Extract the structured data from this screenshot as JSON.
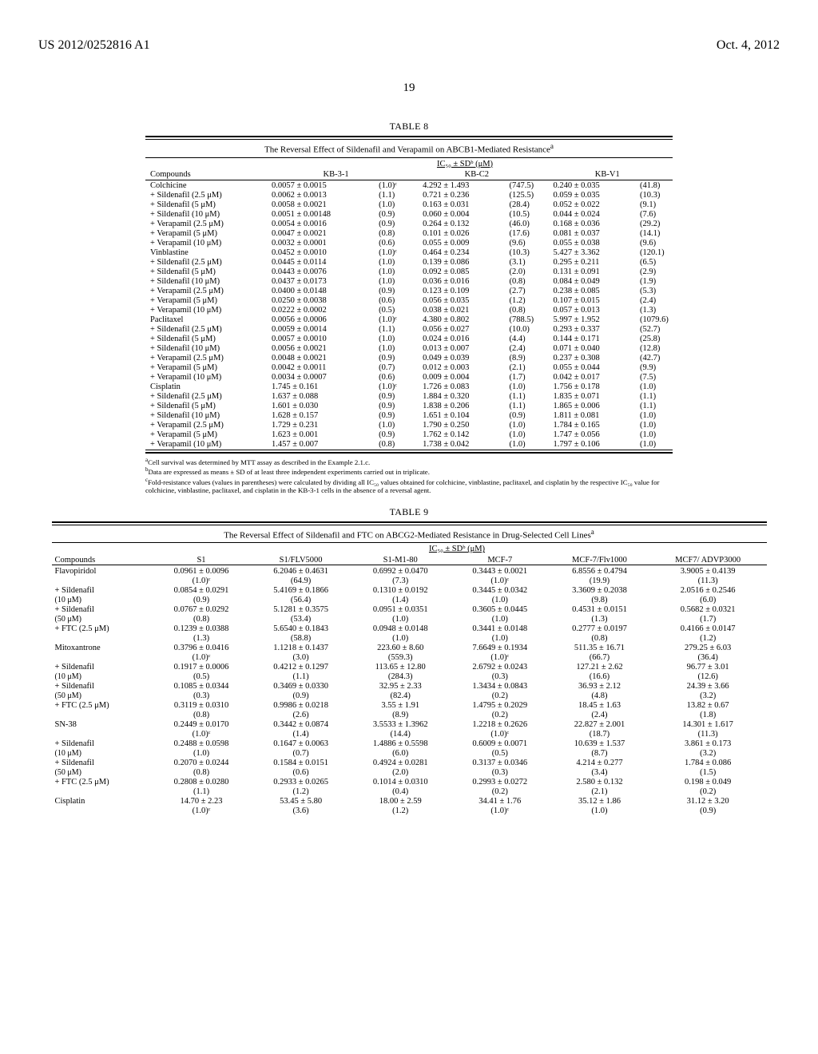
{
  "header": {
    "publication_number": "US 2012/0252816 A1",
    "date": "Oct. 4, 2012",
    "page_number": "19"
  },
  "table8": {
    "number": "TABLE 8",
    "caption": "The Reversal Effect of Sildenafil and Verapamil on ABCB1-Mediated Resistance",
    "caption_sup": "a",
    "ic_header": "IC₅₀ ± SDᵇ (μM)",
    "columns": [
      "Compounds",
      "KB-3-1",
      "KB-C2",
      "KB-V1"
    ],
    "rows": [
      {
        "name": "Colchicine",
        "kb31": "0.0057 ± 0.0015",
        "kb31_f": "(1.0)ᶜ",
        "kbc2": "4.292 ± 1.493",
        "kbc2_f": "(747.5)",
        "kbv1": "0.240 ± 0.035",
        "kbv1_f": "(41.8)"
      },
      {
        "name": "+ Sildenafil (2.5 μM)",
        "kb31": "0.0062 ± 0.0013",
        "kb31_f": "(1.1)",
        "kbc2": "0.721 ± 0.236",
        "kbc2_f": "(125.5)",
        "kbv1": "0.059 ± 0.035",
        "kbv1_f": "(10.3)"
      },
      {
        "name": "+ Sildenafil (5 μM)",
        "kb31": "0.0058 ± 0.0021",
        "kb31_f": "(1.0)",
        "kbc2": "0.163 ± 0.031",
        "kbc2_f": "(28.4)",
        "kbv1": "0.052 ± 0.022",
        "kbv1_f": "(9.1)"
      },
      {
        "name": "+ Sildenafil (10 μM)",
        "kb31": "0.0051 ± 0.00148",
        "kb31_f": "(0.9)",
        "kbc2": "0.060 ± 0.004",
        "kbc2_f": "(10.5)",
        "kbv1": "0.044 ± 0.024",
        "kbv1_f": "(7.6)"
      },
      {
        "name": "+ Verapamil (2.5 μM)",
        "kb31": "0.0054 ± 0.0016",
        "kb31_f": "(0.9)",
        "kbc2": "0.264 ± 0.132",
        "kbc2_f": "(46.0)",
        "kbv1": "0.168 ± 0.036",
        "kbv1_f": "(29.2)"
      },
      {
        "name": "+ Verapamil (5 μM)",
        "kb31": "0.0047 ± 0.0021",
        "kb31_f": "(0.8)",
        "kbc2": "0.101 ± 0.026",
        "kbc2_f": "(17.6)",
        "kbv1": "0.081 ± 0.037",
        "kbv1_f": "(14.1)"
      },
      {
        "name": "+ Verapamil (10 μM)",
        "kb31": "0.0032 ± 0.0001",
        "kb31_f": "(0.6)",
        "kbc2": "0.055 ± 0.009",
        "kbc2_f": "(9.6)",
        "kbv1": "0.055 ± 0.038",
        "kbv1_f": "(9.6)"
      },
      {
        "name": "Vinblastine",
        "kb31": "0.0452 ± 0.0010",
        "kb31_f": "(1.0)ᶜ",
        "kbc2": "0.464 ± 0.234",
        "kbc2_f": "(10.3)",
        "kbv1": "5.427 ± 3.362",
        "kbv1_f": "(120.1)"
      },
      {
        "name": "+ Sildenafil (2.5 μM)",
        "kb31": "0.0445 ± 0.0114",
        "kb31_f": "(1.0)",
        "kbc2": "0.139 ± 0.086",
        "kbc2_f": "(3.1)",
        "kbv1": "0.295 ± 0.211",
        "kbv1_f": "(6.5)"
      },
      {
        "name": "+ Sildenafil (5 μM)",
        "kb31": "0.0443 ± 0.0076",
        "kb31_f": "(1.0)",
        "kbc2": "0.092 ± 0.085",
        "kbc2_f": "(2.0)",
        "kbv1": "0.131 ± 0.091",
        "kbv1_f": "(2.9)"
      },
      {
        "name": "+ Sildenafil (10 μM)",
        "kb31": "0.0437 ± 0.0173",
        "kb31_f": "(1.0)",
        "kbc2": "0.036 ± 0.016",
        "kbc2_f": "(0.8)",
        "kbv1": "0.084 ± 0.049",
        "kbv1_f": "(1.9)"
      },
      {
        "name": "+ Verapamil (2.5 μM)",
        "kb31": "0.0400 ± 0.0148",
        "kb31_f": "(0.9)",
        "kbc2": "0.123 ± 0.109",
        "kbc2_f": "(2.7)",
        "kbv1": "0.238 ± 0.085",
        "kbv1_f": "(5.3)"
      },
      {
        "name": "+ Verapamil (5 μM)",
        "kb31": "0.0250 ± 0.0038",
        "kb31_f": "(0.6)",
        "kbc2": "0.056 ± 0.035",
        "kbc2_f": "(1.2)",
        "kbv1": "0.107 ± 0.015",
        "kbv1_f": "(2.4)"
      },
      {
        "name": "+ Verapamil (10 μM)",
        "kb31": "0.0222 ± 0.0002",
        "kb31_f": "(0.5)",
        "kbc2": "0.038 ± 0.021",
        "kbc2_f": "(0.8)",
        "kbv1": "0.057 ± 0.013",
        "kbv1_f": "(1.3)"
      },
      {
        "name": "Paclitaxel",
        "kb31": "0.0056 ± 0.0006",
        "kb31_f": "(1.0)ᶜ",
        "kbc2": "4.380 ± 0.802",
        "kbc2_f": "(788.5)",
        "kbv1": "5.997 ± 1.952",
        "kbv1_f": "(1079.6)"
      },
      {
        "name": "+ Sildenafil (2.5 μM)",
        "kb31": "0.0059 ± 0.0014",
        "kb31_f": "(1.1)",
        "kbc2": "0.056 ± 0.027",
        "kbc2_f": "(10.0)",
        "kbv1": "0.293 ± 0.337",
        "kbv1_f": "(52.7)"
      },
      {
        "name": "+ Sildenafil (5 μM)",
        "kb31": "0.0057 ± 0.0010",
        "kb31_f": "(1.0)",
        "kbc2": "0.024 ± 0.016",
        "kbc2_f": "(4.4)",
        "kbv1": "0.144 ± 0.171",
        "kbv1_f": "(25.8)"
      },
      {
        "name": "+ Sildenafil (10 μM)",
        "kb31": "0.0056 ± 0.0021",
        "kb31_f": "(1.0)",
        "kbc2": "0.013 ± 0.007",
        "kbc2_f": "(2.4)",
        "kbv1": "0.071 ± 0.040",
        "kbv1_f": "(12.8)"
      },
      {
        "name": "+ Verapamil (2.5 μM)",
        "kb31": "0.0048 ± 0.0021",
        "kb31_f": "(0.9)",
        "kbc2": "0.049 ± 0.039",
        "kbc2_f": "(8.9)",
        "kbv1": "0.237 ± 0.308",
        "kbv1_f": "(42.7)"
      },
      {
        "name": "+ Verapamil (5 μM)",
        "kb31": "0.0042 ± 0.0011",
        "kb31_f": "(0.7)",
        "kbc2": "0.012 ± 0.003",
        "kbc2_f": "(2.1)",
        "kbv1": "0.055 ± 0.044",
        "kbv1_f": "(9.9)"
      },
      {
        "name": "+ Verapamil (10 μM)",
        "kb31": "0.0034 ± 0.0007",
        "kb31_f": "(0.6)",
        "kbc2": "0.009 ± 0.004",
        "kbc2_f": "(1.7)",
        "kbv1": "0.042 ± 0.017",
        "kbv1_f": "(7.5)"
      },
      {
        "name": "Cisplatin",
        "kb31": "1.745 ± 0.161",
        "kb31_f": "(1.0)ᶜ",
        "kbc2": "1.726 ± 0.083",
        "kbc2_f": "(1.0)",
        "kbv1": "1.756 ± 0.178",
        "kbv1_f": "(1.0)"
      },
      {
        "name": "+ Sildenafil (2.5 μM)",
        "kb31": "1.637 ± 0.088",
        "kb31_f": "(0.9)",
        "kbc2": "1.884 ± 0.320",
        "kbc2_f": "(1.1)",
        "kbv1": "1.835 ± 0.071",
        "kbv1_f": "(1.1)"
      },
      {
        "name": "+ Sildenafil (5 μM)",
        "kb31": "1.601 ± 0.030",
        "kb31_f": "(0.9)",
        "kbc2": "1.838 ± 0.206",
        "kbc2_f": "(1.1)",
        "kbv1": "1.865 ± 0.006",
        "kbv1_f": "(1.1)"
      },
      {
        "name": "+ Sildenafil (10 μM)",
        "kb31": "1.628 ± 0.157",
        "kb31_f": "(0.9)",
        "kbc2": "1.651 ± 0.104",
        "kbc2_f": "(0.9)",
        "kbv1": "1.811 ± 0.081",
        "kbv1_f": "(1.0)"
      },
      {
        "name": "+ Verapamil (2.5 μM)",
        "kb31": "1.729 ± 0.231",
        "kb31_f": "(1.0)",
        "kbc2": "1.790 ± 0.250",
        "kbc2_f": "(1.0)",
        "kbv1": "1.784 ± 0.165",
        "kbv1_f": "(1.0)"
      },
      {
        "name": "+ Verapamil (5 μM)",
        "kb31": "1.623 ± 0.001",
        "kb31_f": "(0.9)",
        "kbc2": "1.762 ± 0.142",
        "kbc2_f": "(1.0)",
        "kbv1": "1.747 ± 0.056",
        "kbv1_f": "(1.0)"
      },
      {
        "name": "+ Verapamil (10 μM)",
        "kb31": "1.457 ± 0.007",
        "kb31_f": "(0.8)",
        "kbc2": "1.738 ± 0.042",
        "kbc2_f": "(1.0)",
        "kbv1": "1.797 ± 0.106",
        "kbv1_f": "(1.0)"
      }
    ],
    "footnotes": {
      "a": "Cell survival was determined by MTT assay as described in the Example 2.1.c.",
      "b": "Data are expressed as means ± SD of at least three independent experiments carried out in triplicate.",
      "c": "Fold-resistance values (values in parentheses) were calculated by dividing all IC₅₀ values obtained for colchicine, vinblastine, paclitaxel, and cisplatin by the respective IC₅₀ value for colchicine, vinblastine, paclitaxel, and cisplatin in the KB-3-1 cells in the absence of a reversal agent."
    }
  },
  "table9": {
    "number": "TABLE 9",
    "caption": "The Reversal Effect of Sildenafil and FTC on ABCG2-Mediated Resistance in Drug-Selected Cell Lines",
    "caption_sup": "a",
    "ic_header": "IC₅₀ ± SDᵇ (μM)",
    "columns": [
      "Compounds",
      "S1",
      "S1/FLV5000",
      "S1-M1-80",
      "MCF-7",
      "MCF-7/Flv1000",
      "MCF7/ ADVP3000"
    ],
    "rows": [
      {
        "name": "Flavopiridol",
        "sub": "",
        "c1": "0.0961 ± 0.0096",
        "c1f": "(1.0)ᶜ",
        "c2": "6.2046 ± 0.4631",
        "c2f": "(64.9)",
        "c3": "0.6992 ± 0.0470",
        "c3f": "(7.3)",
        "c4": "0.3443 ± 0.0021",
        "c4f": "(1.0)ᶜ",
        "c5": "6.8556 ± 0.4794",
        "c5f": "(19.9)",
        "c6": "3.9005 ± 0.4139",
        "c6f": "(11.3)"
      },
      {
        "name": "+ Sildenafil",
        "sub": "(10 μM)",
        "c1": "0.0854 ± 0.0291",
        "c1f": "(0.9)",
        "c2": "5.4169 ± 0.1866",
        "c2f": "(56.4)",
        "c3": "0.1310 ± 0.0192",
        "c3f": "(1.4)",
        "c4": "0.3445 ± 0.0342",
        "c4f": "(1.0)",
        "c5": "3.3609 ± 0.2038",
        "c5f": "(9.8)",
        "c6": "2.0516 ± 0.2546",
        "c6f": "(6.0)"
      },
      {
        "name": "+ Sildenafil",
        "sub": "(50 μM)",
        "c1": "0.0767 ± 0.0292",
        "c1f": "(0.8)",
        "c2": "5.1281 ± 0.3575",
        "c2f": "(53.4)",
        "c3": "0.0951 ± 0.0351",
        "c3f": "(1.0)",
        "c4": "0.3605 ± 0.0445",
        "c4f": "(1.0)",
        "c5": "0.4531 ± 0.0151",
        "c5f": "(1.3)",
        "c6": "0.5682 ± 0.0321",
        "c6f": "(1.7)"
      },
      {
        "name": "+ FTC (2.5 μM)",
        "sub": "",
        "c1": "0.1239 ± 0.0388",
        "c1f": "(1.3)",
        "c2": "5.6540 ± 0.1843",
        "c2f": "(58.8)",
        "c3": "0.0948 ± 0.0148",
        "c3f": "(1.0)",
        "c4": "0.3441 ± 0.0148",
        "c4f": "(1.0)",
        "c5": "0.2777 ± 0.0197",
        "c5f": "(0.8)",
        "c6": "0.4166 ± 0.0147",
        "c6f": "(1.2)"
      },
      {
        "name": "Mitoxantrone",
        "sub": "",
        "c1": "0.3796 ± 0.0416",
        "c1f": "(1.0)ᶜ",
        "c2": "1.1218 ± 0.1437",
        "c2f": "(3.0)",
        "c3": "223.60 ± 8.60",
        "c3f": "(559.3)",
        "c4": "7.6649 ± 0.1934",
        "c4f": "(1.0)ᶜ",
        "c5": "511.35 ± 16.71",
        "c5f": "(66.7)",
        "c6": "279.25 ± 6.03",
        "c6f": "(36.4)"
      },
      {
        "name": "+ Sildenafil",
        "sub": "(10 μM)",
        "c1": "0.1917 ± 0.0006",
        "c1f": "(0.5)",
        "c2": "0.4212 ± 0.1297",
        "c2f": "(1.1)",
        "c3": "113.65 ± 12.80",
        "c3f": "(284.3)",
        "c4": "2.6792 ± 0.0243",
        "c4f": "(0.3)",
        "c5": "127.21 ± 2.62",
        "c5f": "(16.6)",
        "c6": "96.77 ± 3.01",
        "c6f": "(12.6)"
      },
      {
        "name": "+ Sildenafil",
        "sub": "(50 μM)",
        "c1": "0.1085 ± 0.0344",
        "c1f": "(0.3)",
        "c2": "0.3469 ± 0.0330",
        "c2f": "(0.9)",
        "c3": "32.95 ± 2.33",
        "c3f": "(82.4)",
        "c4": "1.3434 ± 0.0843",
        "c4f": "(0.2)",
        "c5": "36.93 ± 2.12",
        "c5f": "(4.8)",
        "c6": "24.39 ± 3.66",
        "c6f": "(3.2)"
      },
      {
        "name": "+ FTC (2.5 μM)",
        "sub": "",
        "c1": "0.3119 ± 0.0310",
        "c1f": "(0.8)",
        "c2": "0.9986 ± 0.0218",
        "c2f": "(2.6)",
        "c3": "3.55 ± 1.91",
        "c3f": "(8.9)",
        "c4": "1.4795 ± 0.2029",
        "c4f": "(0.2)",
        "c5": "18.45 ± 1.63",
        "c5f": "(2.4)",
        "c6": "13.82 ± 0.67",
        "c6f": "(1.8)"
      },
      {
        "name": "SN-38",
        "sub": "",
        "c1": "0.2449 ± 0.0170",
        "c1f": "(1.0)ᶜ",
        "c2": "0.3442 ± 0.0874",
        "c2f": "(1.4)",
        "c3": "3.5533 ± 1.3962",
        "c3f": "(14.4)",
        "c4": "1.2218 ± 0.2626",
        "c4f": "(1.0)ᶜ",
        "c5": "22.827 ± 2.001",
        "c5f": "(18.7)",
        "c6": "14.301 ± 1.617",
        "c6f": "(11.3)"
      },
      {
        "name": "+ Sildenafil",
        "sub": "(10 μM)",
        "c1": "0.2488 ± 0.0598",
        "c1f": "(1.0)",
        "c2": "0.1647 ± 0.0063",
        "c2f": "(0.7)",
        "c3": "1.4886 ± 0.5598",
        "c3f": "(6.0)",
        "c4": "0.6009 ± 0.0071",
        "c4f": "(0.5)",
        "c5": "10.639 ± 1.537",
        "c5f": "(8.7)",
        "c6": "3.861 ± 0.173",
        "c6f": "(3.2)"
      },
      {
        "name": "+ Sildenafil",
        "sub": "(50 μM)",
        "c1": "0.2070 ± 0.0244",
        "c1f": "(0.8)",
        "c2": "0.1584 ± 0.0151",
        "c2f": "(0.6)",
        "c3": "0.4924 ± 0.0281",
        "c3f": "(2.0)",
        "c4": "0.3137 ± 0.0346",
        "c4f": "(0.3)",
        "c5": "4.214 ± 0.277",
        "c5f": "(3.4)",
        "c6": "1.784 ± 0.086",
        "c6f": "(1.5)"
      },
      {
        "name": "+ FTC (2.5 μM)",
        "sub": "",
        "c1": "0.2808 ± 0.0280",
        "c1f": "(1.1)",
        "c2": "0.2933 ± 0.0265",
        "c2f": "(1.2)",
        "c3": "0.1014 ± 0.0310",
        "c3f": "(0.4)",
        "c4": "0.2993 ± 0.0272",
        "c4f": "(0.2)",
        "c5": "2.580 ± 0.132",
        "c5f": "(2.1)",
        "c6": "0.198 ± 0.049",
        "c6f": "(0.2)"
      },
      {
        "name": "Cisplatin",
        "sub": "",
        "c1": "14.70 ± 2.23",
        "c1f": "(1.0)ᶜ",
        "c2": "53.45 ± 5.80",
        "c2f": "(3.6)",
        "c3": "18.00 ± 2.59",
        "c3f": "(1.2)",
        "c4": "34.41 ± 1.76",
        "c4f": "(1.0)ᶜ",
        "c5": "35.12 ± 1.86",
        "c5f": "(1.0)",
        "c6": "31.12 ± 3.20",
        "c6f": "(0.9)"
      }
    ]
  }
}
